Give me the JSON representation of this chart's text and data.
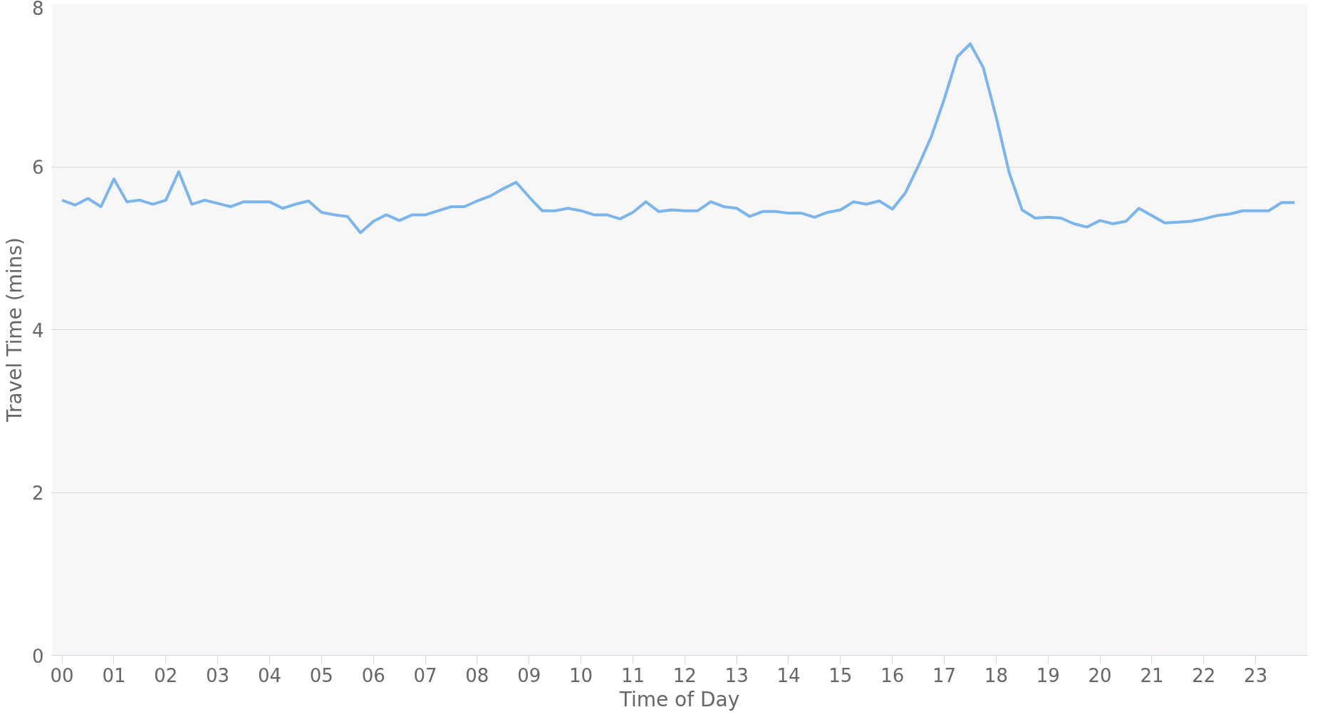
{
  "chart_data": {
    "type": "line",
    "xlabel": "Time of Day",
    "ylabel": "Travel Time (mins)",
    "x": [
      0,
      0.25,
      0.5,
      0.75,
      1,
      1.25,
      1.5,
      1.75,
      2,
      2.25,
      2.5,
      2.75,
      3,
      3.25,
      3.5,
      3.75,
      4,
      4.25,
      4.5,
      4.75,
      5,
      5.25,
      5.5,
      5.75,
      6,
      6.25,
      6.5,
      6.75,
      7,
      7.25,
      7.5,
      7.75,
      8,
      8.25,
      8.5,
      8.75,
      9,
      9.25,
      9.5,
      9.75,
      10,
      10.25,
      10.5,
      10.75,
      11,
      11.25,
      11.5,
      11.75,
      12,
      12.25,
      12.5,
      12.75,
      13,
      13.25,
      13.5,
      13.75,
      14,
      14.25,
      14.5,
      14.75,
      15,
      15.25,
      15.5,
      15.75,
      16,
      16.25,
      16.5,
      16.75,
      17,
      17.25,
      17.5,
      17.75,
      18,
      18.25,
      18.5,
      18.75,
      19,
      19.25,
      19.5,
      19.75,
      20,
      20.25,
      20.5,
      20.75,
      21,
      21.25,
      21.5,
      21.75,
      22,
      22.25,
      22.5,
      22.75,
      23,
      23.25,
      23.5,
      23.75
    ],
    "series": [
      {
        "color": "#7cb5ec",
        "values": [
          5.59,
          5.53,
          5.61,
          5.51,
          5.85,
          5.57,
          5.59,
          5.54,
          5.59,
          5.94,
          5.54,
          5.59,
          5.55,
          5.51,
          5.57,
          5.57,
          5.57,
          5.49,
          5.54,
          5.58,
          5.44,
          5.41,
          5.39,
          5.19,
          5.33,
          5.41,
          5.34,
          5.41,
          5.41,
          5.46,
          5.51,
          5.51,
          5.58,
          5.64,
          5.73,
          5.81,
          5.63,
          5.46,
          5.46,
          5.49,
          5.46,
          5.41,
          5.41,
          5.36,
          5.44,
          5.57,
          5.45,
          5.47,
          5.46,
          5.46,
          5.57,
          5.51,
          5.49,
          5.39,
          5.45,
          5.45,
          5.43,
          5.43,
          5.38,
          5.44,
          5.47,
          5.57,
          5.54,
          5.58,
          5.48,
          5.68,
          6.01,
          6.37,
          6.83,
          7.35,
          7.51,
          7.22,
          6.61,
          5.93,
          5.47,
          5.37,
          5.38,
          5.37,
          5.3,
          5.26,
          5.34,
          5.3,
          5.33,
          5.49,
          5.4,
          5.31,
          5.32,
          5.33,
          5.36,
          5.4,
          5.42,
          5.46,
          5.46,
          5.46,
          5.56,
          5.56
        ]
      }
    ],
    "xlim": [
      -0.2,
      24
    ],
    "xticks": [
      {
        "value": 0,
        "label": "00"
      },
      {
        "value": 1,
        "label": "01"
      },
      {
        "value": 2,
        "label": "02"
      },
      {
        "value": 3,
        "label": "03"
      },
      {
        "value": 4,
        "label": "04"
      },
      {
        "value": 5,
        "label": "05"
      },
      {
        "value": 6,
        "label": "06"
      },
      {
        "value": 7,
        "label": "07"
      },
      {
        "value": 8,
        "label": "08"
      },
      {
        "value": 9,
        "label": "09"
      },
      {
        "value": 10,
        "label": "10"
      },
      {
        "value": 11,
        "label": "11"
      },
      {
        "value": 12,
        "label": "12"
      },
      {
        "value": 13,
        "label": "13"
      },
      {
        "value": 14,
        "label": "14"
      },
      {
        "value": 15,
        "label": "15"
      },
      {
        "value": 16,
        "label": "16"
      },
      {
        "value": 17,
        "label": "17"
      },
      {
        "value": 18,
        "label": "18"
      },
      {
        "value": 19,
        "label": "19"
      },
      {
        "value": 20,
        "label": "20"
      },
      {
        "value": 21,
        "label": "21"
      },
      {
        "value": 22,
        "label": "22"
      },
      {
        "value": 23,
        "label": "23"
      }
    ],
    "ylim": [
      0,
      8
    ],
    "yticks": [
      0,
      2,
      4,
      6,
      8
    ],
    "grid": "y",
    "marker": "none",
    "line_style": "solid"
  }
}
